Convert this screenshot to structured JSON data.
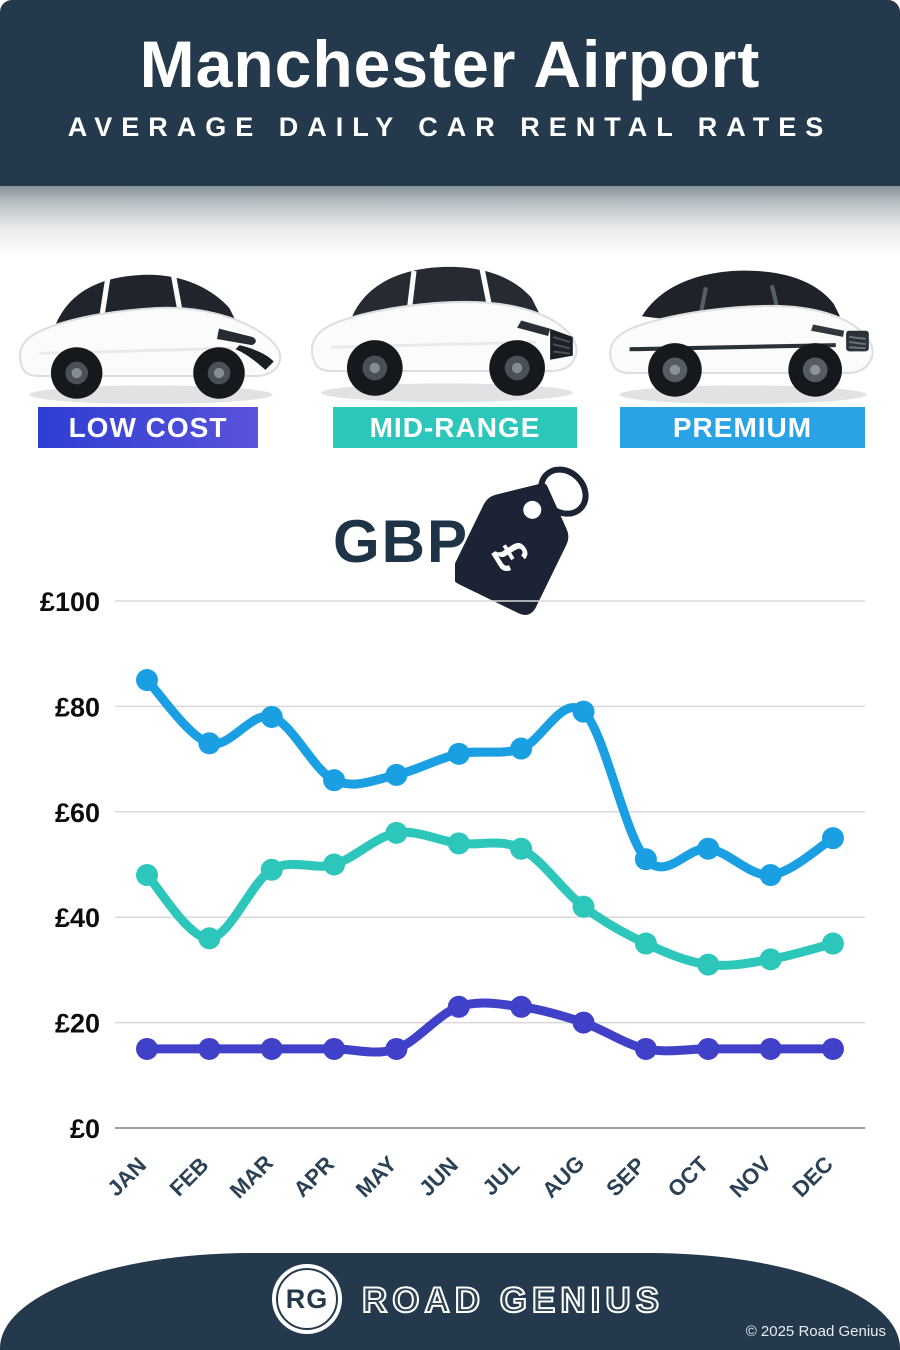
{
  "header": {
    "title": "Manchester Airport",
    "subtitle": "AVERAGE DAILY CAR RENTAL RATES"
  },
  "categories": [
    {
      "label": "LOW COST",
      "car_image": "white-hatchback-car-image",
      "badge_color_start": "#2e3ed2",
      "badge_color_end": "#5a52dc"
    },
    {
      "label": "MID-RANGE",
      "car_image": "white-suv-car-image",
      "badge_color": "#2cc7ba"
    },
    {
      "label": "PREMIUM",
      "car_image": "white-luxury-suv-car-image",
      "badge_color": "#29a3e6"
    }
  ],
  "currency": {
    "code": "GBP",
    "symbol": "£",
    "icon": "price-tag-icon",
    "tag_color": "#1b2334"
  },
  "chart_data": {
    "type": "line",
    "categories": [
      "JAN",
      "FEB",
      "MAR",
      "APR",
      "MAY",
      "JUN",
      "JUL",
      "AUG",
      "SEP",
      "OCT",
      "NOV",
      "DEC"
    ],
    "series": [
      {
        "name": "PREMIUM",
        "color": "#1b9fe3",
        "values": [
          85,
          73,
          78,
          66,
          67,
          71,
          72,
          79,
          51,
          53,
          48,
          55
        ]
      },
      {
        "name": "MID-RANGE",
        "color": "#2cc7ba",
        "values": [
          48,
          36,
          49,
          50,
          56,
          54,
          53,
          42,
          35,
          31,
          32,
          35
        ]
      },
      {
        "name": "LOW COST",
        "color": "#4140c8",
        "values": [
          15,
          15,
          15,
          15,
          15,
          23,
          23,
          20,
          15,
          15,
          15,
          15
        ]
      }
    ],
    "title": "",
    "xlabel": "",
    "ylabel": "",
    "currency_prefix": "£",
    "yticks": [
      0,
      20,
      40,
      60,
      80,
      100
    ],
    "ylim": [
      0,
      100
    ],
    "grid": true,
    "legend_position": "none",
    "marker": "circle",
    "line_smoothing": true
  },
  "footer": {
    "logo_initials": "RG",
    "brand": "ROAD GENIUS",
    "copyright": "© 2025 Road Genius"
  },
  "colors": {
    "header_bg": "#24394b",
    "grid_line": "#d9d9d9",
    "axis_line": "#97a0a7",
    "tick_text": "#0d0d0d",
    "month_text": "#2b4156",
    "text_dark": "#1e3346"
  }
}
